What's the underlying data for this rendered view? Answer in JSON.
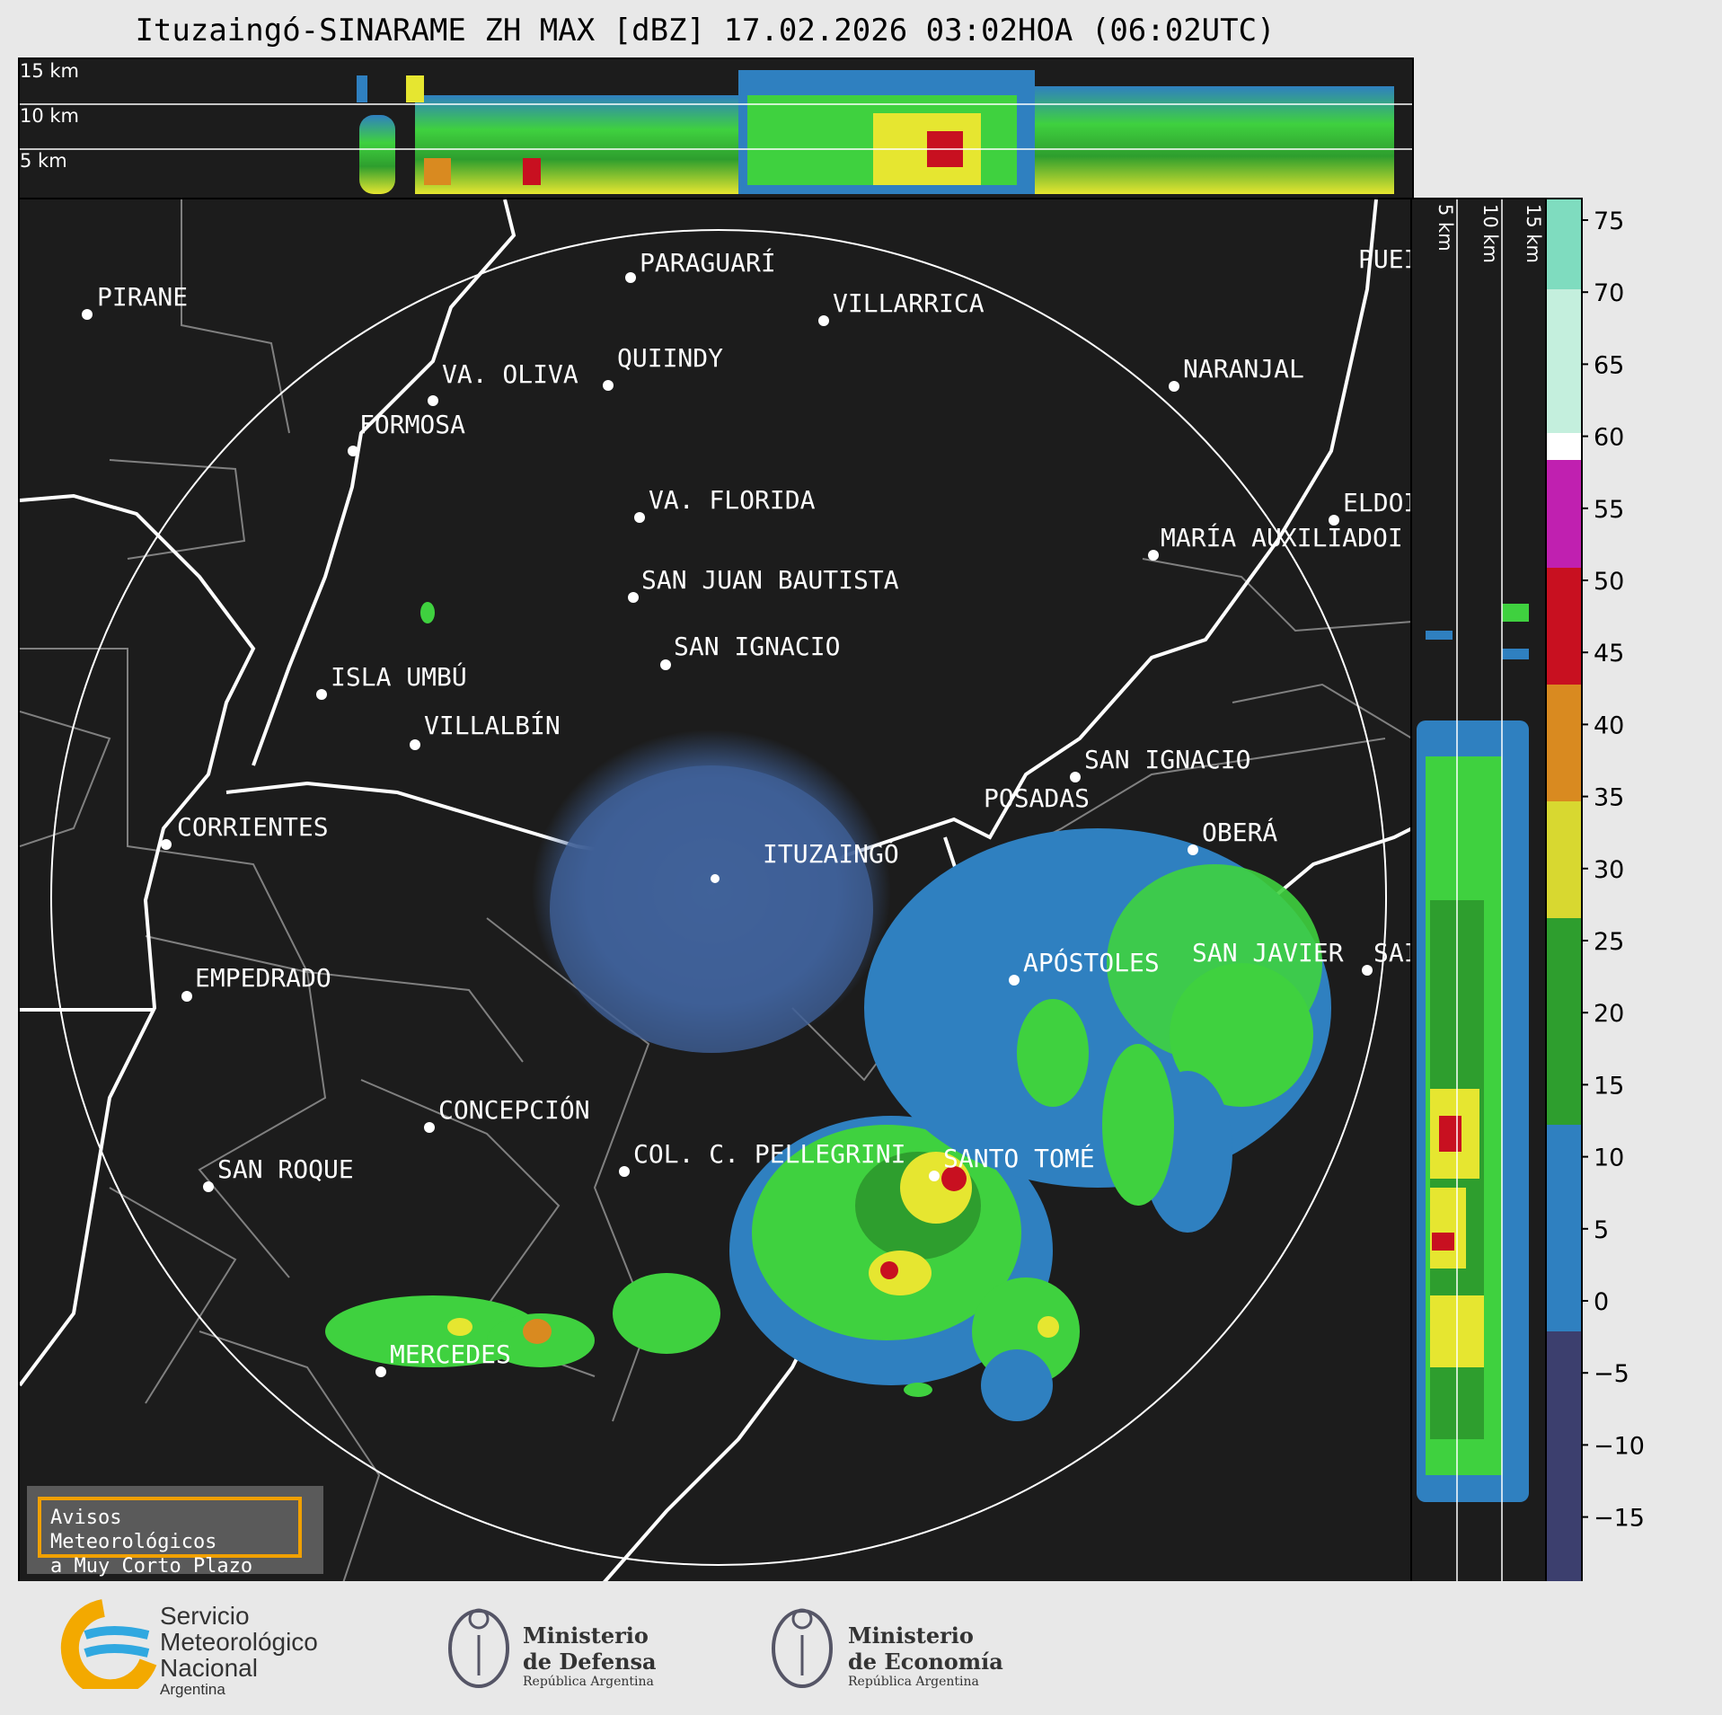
{
  "title": "Ituzaingó-SINARAME ZH MAX [dBZ] 17.02.2026 03:02HOA (06:02UTC)",
  "top_panel": {
    "height_labels": [
      "15 km",
      "10 km",
      "5 km"
    ]
  },
  "right_panel": {
    "height_labels": [
      "5 km",
      "10 km",
      "15 km"
    ]
  },
  "colorbar": {
    "ticks": [
      "75",
      "70",
      "65",
      "60",
      "55",
      "50",
      "45",
      "40",
      "35",
      "30",
      "25",
      "20",
      "15",
      "10",
      "5",
      "0",
      "−5",
      "−10",
      "−15"
    ],
    "colors": {
      "low": "#3c3f6e",
      "blue": "#2f80c0",
      "green": "#3fd13f",
      "yellow": "#e6e630",
      "orange": "#d98a20",
      "red": "#c81020",
      "magenta": "#d020d0",
      "white": "#ffffff",
      "teal": "#7fdcbf"
    }
  },
  "cities": [
    {
      "name": "PIRANE"
    },
    {
      "name": "PARAGUARÍ"
    },
    {
      "name": "VILLARRICA"
    },
    {
      "name": "QUIINDY"
    },
    {
      "name": "VA. OLIVA"
    },
    {
      "name": "FORMOSA"
    },
    {
      "name": "NARANJAL"
    },
    {
      "name": "PUEI"
    },
    {
      "name": "VA. FLORIDA"
    },
    {
      "name": "ELDOI"
    },
    {
      "name": "MARÍA AUXILIADOI"
    },
    {
      "name": "SAN JUAN BAUTISTA"
    },
    {
      "name": "SAN IGNACIO"
    },
    {
      "name": "ISLA UMBÚ"
    },
    {
      "name": "VILLALBÍN"
    },
    {
      "name": "SAN IGNACIO"
    },
    {
      "name": "POSADAS"
    },
    {
      "name": "ITUZAINGÓ"
    },
    {
      "name": "OBERÁ"
    },
    {
      "name": "CORRIENTES"
    },
    {
      "name": "APÓSTOLES"
    },
    {
      "name": "SAN JAVIER"
    },
    {
      "name": "SAI"
    },
    {
      "name": "EMPEDRADO"
    },
    {
      "name": "CONCEPCIÓN"
    },
    {
      "name": "COL. C. PELLEGRINI"
    },
    {
      "name": "SANTO TOMÉ"
    },
    {
      "name": "SAN ROQUE"
    },
    {
      "name": "MERCEDES"
    }
  ],
  "warning_box": {
    "line1": "Avisos Meteorológicos",
    "line2": "a Muy Corto Plazo"
  },
  "logos": {
    "smn": {
      "line1": "Servicio",
      "line2": "Meteorológico",
      "line3": "Nacional",
      "line4": "Argentina"
    },
    "defensa": {
      "line1": "Ministerio",
      "line2": "de Defensa",
      "line3": "República Argentina"
    },
    "economia": {
      "line1": "Ministerio",
      "line2": "de Economía",
      "line3": "República Argentina"
    }
  }
}
